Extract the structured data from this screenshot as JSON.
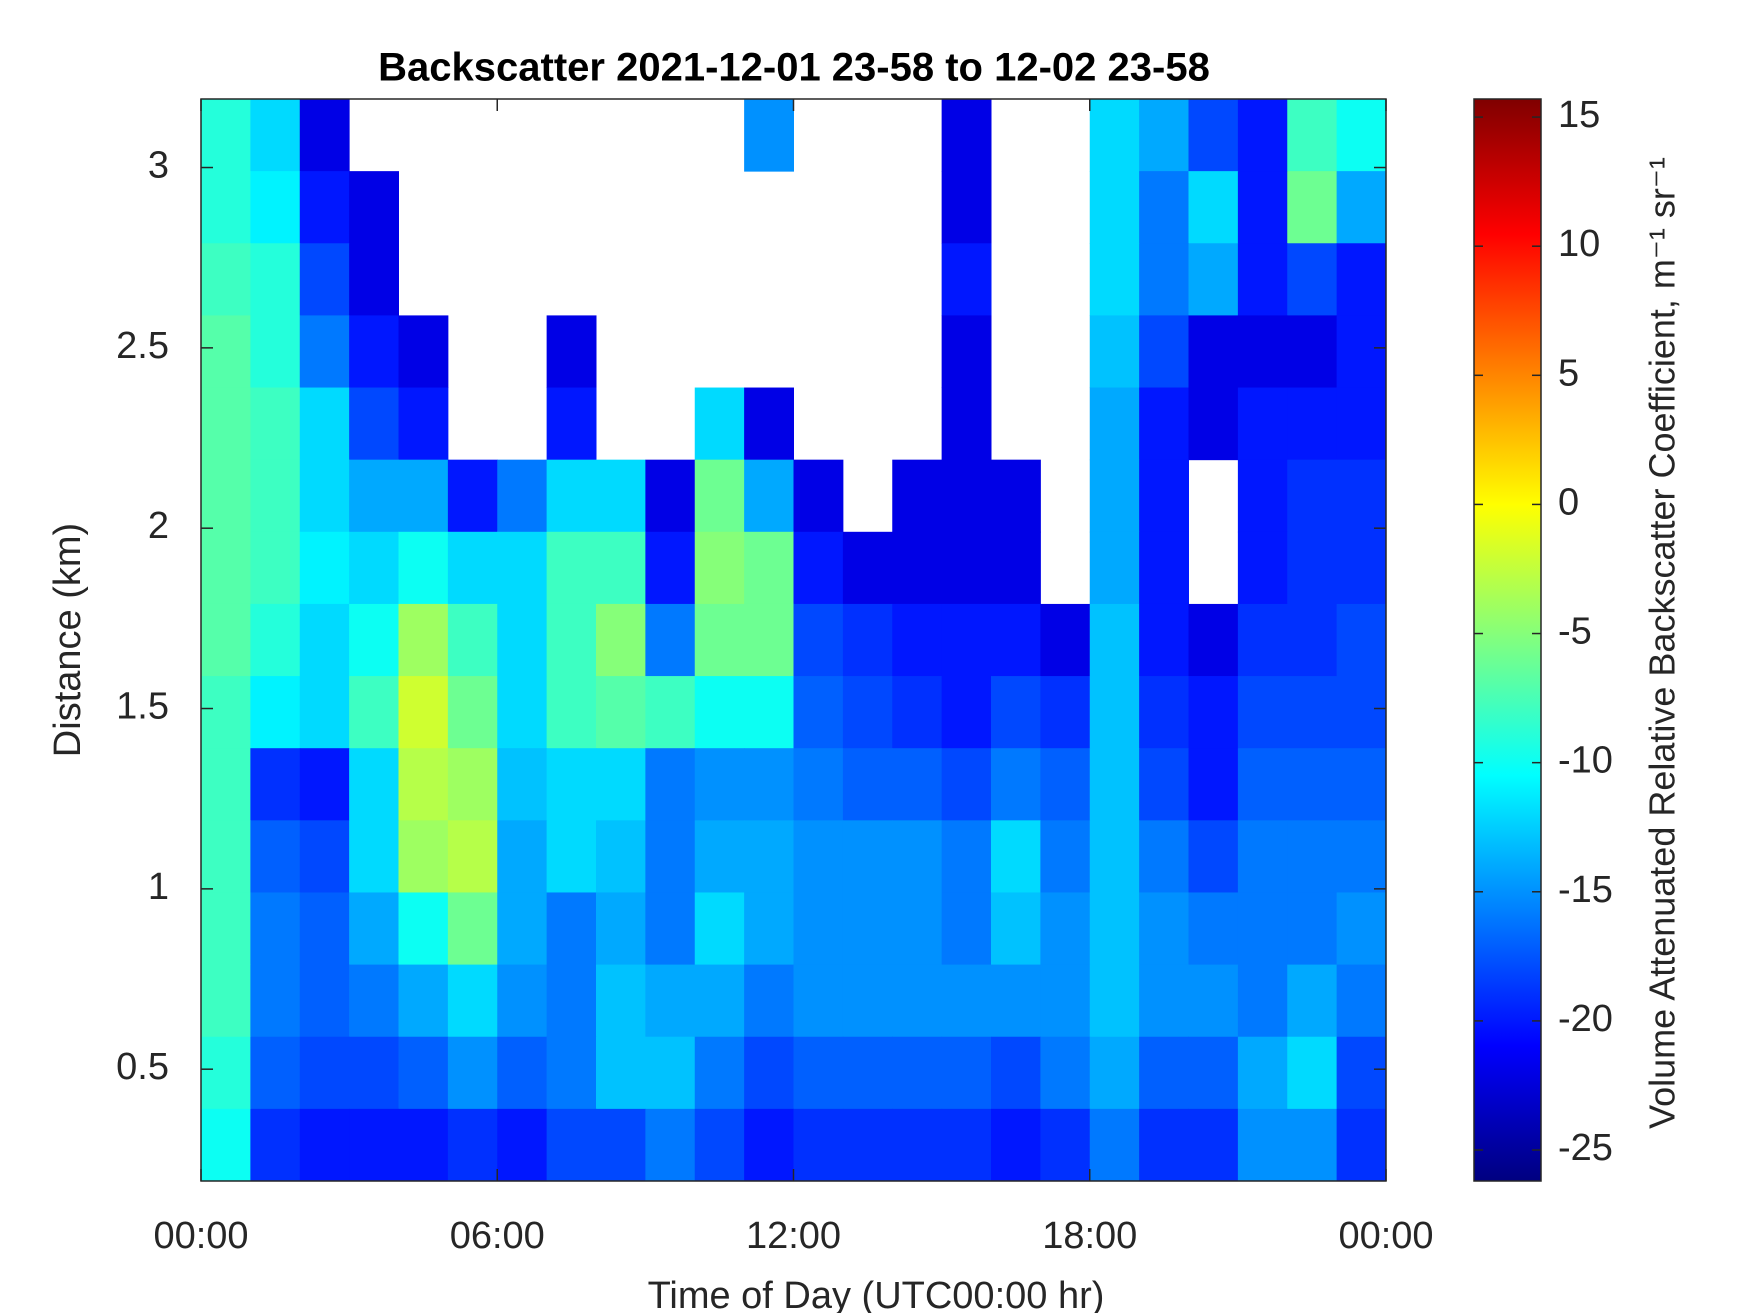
{
  "chart_data": {
    "type": "heatmap",
    "title": "Backscatter 2021-12-01 23-58 to 12-02 23-58",
    "x_label": "Time of Day (UTC00:00 hr)",
    "y_label": "Distance (km)",
    "colorbar_label": "Volume Attenuated Relative Backscatter Coefficient, m⁻¹ sr⁻¹",
    "colormap": "jet",
    "x": [
      0.5,
      1.5,
      2.5,
      3.5,
      4.5,
      5.5,
      6.5,
      7.5,
      8.5,
      9.5,
      10.5,
      11.5,
      12.5,
      13.5,
      14.5,
      15.5,
      16.5,
      17.5,
      18.5,
      19.5,
      20.5,
      21.5,
      22.5,
      23.5
    ],
    "y": [
      3.09,
      2.89,
      2.69,
      2.49,
      2.29,
      2.09,
      1.89,
      1.69,
      1.49,
      1.29,
      1.09,
      0.89,
      0.69,
      0.49,
      0.29
    ],
    "z": [
      [
        -9,
        -12,
        -22,
        null,
        null,
        null,
        null,
        null,
        null,
        null,
        null,
        -15,
        null,
        null,
        null,
        -22,
        null,
        null,
        -12,
        -14,
        -18,
        -20,
        -8,
        -10
      ],
      [
        -9,
        -11,
        -20,
        -22,
        null,
        null,
        null,
        null,
        null,
        null,
        null,
        null,
        null,
        null,
        null,
        -22,
        null,
        null,
        -12,
        -16,
        -12,
        -20,
        -6,
        -14
      ],
      [
        -8,
        -9,
        -18,
        -22,
        null,
        null,
        null,
        null,
        null,
        null,
        null,
        null,
        null,
        null,
        null,
        -20,
        null,
        null,
        -12,
        -16,
        -14,
        -20,
        -18,
        -20
      ],
      [
        -7,
        -9,
        -16,
        -20,
        -22,
        null,
        null,
        -22,
        null,
        null,
        null,
        null,
        null,
        null,
        null,
        -22,
        null,
        null,
        -13,
        -18,
        -22,
        -22,
        -22,
        -20
      ],
      [
        -7,
        -8,
        -12,
        -18,
        -20,
        null,
        null,
        -20,
        null,
        null,
        -12,
        -22,
        null,
        null,
        null,
        -22,
        null,
        null,
        -14,
        -20,
        -22,
        -20,
        -20,
        -20
      ],
      [
        -7,
        -8,
        -12,
        -14,
        -14,
        -20,
        -16,
        -12,
        -12,
        -22,
        -6,
        -14,
        -22,
        null,
        -22,
        -22,
        -22,
        null,
        -14,
        -20,
        null,
        -20,
        -19,
        -19
      ],
      [
        -7,
        -8,
        -11,
        -12,
        -10,
        -12,
        -12,
        -8,
        -8,
        -20,
        -5,
        -6,
        -20,
        -22,
        -22,
        -22,
        -22,
        null,
        -14,
        -20,
        null,
        -20,
        -19,
        -19
      ],
      [
        -7,
        -9,
        -12,
        -10,
        -4,
        -8,
        -12,
        -8,
        -5,
        -16,
        -6,
        -6,
        -18,
        -19,
        -20,
        -20,
        -20,
        -22,
        -13,
        -20,
        -22,
        -19,
        -19,
        -18
      ],
      [
        -8,
        -11,
        -12,
        -8,
        -2,
        -6,
        -12,
        -8,
        -7,
        -8,
        -10,
        -10,
        -17,
        -18,
        -19,
        -20,
        -18,
        -19,
        -13,
        -19,
        -20,
        -18,
        -18,
        -18
      ],
      [
        -8,
        -19,
        -20,
        -12,
        -3,
        -4,
        -13,
        -12,
        -12,
        -16,
        -15,
        -15,
        -16,
        -17,
        -17,
        -18,
        -16,
        -17,
        -13,
        -18,
        -20,
        -17,
        -17,
        -17
      ],
      [
        -8,
        -17,
        -18,
        -12,
        -4,
        -3,
        -14,
        -12,
        -13,
        -16,
        -14,
        -14,
        -15,
        -15,
        -15,
        -16,
        -12,
        -16,
        -13,
        -16,
        -18,
        -16,
        -16,
        -16
      ],
      [
        -8,
        -16,
        -17,
        -14,
        -10,
        -6,
        -14,
        -16,
        -14,
        -16,
        -12,
        -14,
        -15,
        -15,
        -15,
        -16,
        -13,
        -15,
        -13,
        -15,
        -16,
        -16,
        -16,
        -15
      ],
      [
        -8,
        -16,
        -17,
        -16,
        -14,
        -12,
        -15,
        -16,
        -13,
        -14,
        -14,
        -16,
        -15,
        -15,
        -15,
        -15,
        -15,
        -15,
        -13,
        -15,
        -15,
        -16,
        -14,
        -16
      ],
      [
        -9,
        -17,
        -18,
        -18,
        -17,
        -15,
        -17,
        -16,
        -13,
        -13,
        -16,
        -18,
        -17,
        -17,
        -17,
        -17,
        -18,
        -16,
        -14,
        -17,
        -17,
        -14,
        -12,
        -18
      ],
      [
        -10,
        -19,
        -20,
        -20,
        -20,
        -19,
        -20,
        -18,
        -18,
        -16,
        -18,
        -20,
        -19,
        -19,
        -19,
        -19,
        -20,
        -19,
        -16,
        -19,
        -19,
        -15,
        -15,
        -19
      ]
    ],
    "xlim": [
      0,
      24
    ],
    "xticks": [
      {
        "value": 0,
        "label": "00:00"
      },
      {
        "value": 6,
        "label": "06:00"
      },
      {
        "value": 12,
        "label": "12:00"
      },
      {
        "value": 18,
        "label": "18:00"
      },
      {
        "value": 24,
        "label": "00:00"
      }
    ],
    "ylim": [
      0.19,
      3.19
    ],
    "yticks": [
      0.5,
      1,
      1.5,
      2,
      2.5,
      3
    ],
    "clim": [
      -26.2,
      15.7
    ],
    "cticks": [
      -25,
      -20,
      -15,
      -10,
      -5,
      0,
      5,
      10,
      15
    ]
  }
}
